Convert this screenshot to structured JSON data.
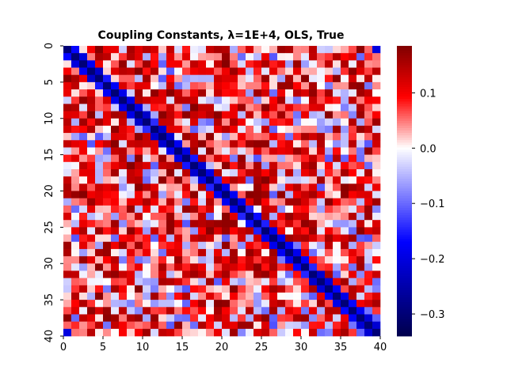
{
  "chart_data": {
    "type": "heatmap",
    "title": "Coupling Constants, λ=1E+4, OLS, True",
    "size": 40,
    "x_ticks": [
      "0",
      "5",
      "10",
      "15",
      "20",
      "25",
      "30",
      "35",
      "40"
    ],
    "y_ticks": [
      "0",
      "5",
      "10",
      "15",
      "20",
      "25",
      "30",
      "35",
      "40"
    ],
    "xlim": [
      0,
      40
    ],
    "ylim": [
      40,
      0
    ],
    "colormap": "seismic",
    "colorbar": {
      "min": -0.34,
      "max": 0.185,
      "ticks": [
        {
          "value": 0.1,
          "label": "0.1"
        },
        {
          "value": 0.0,
          "label": "0.0"
        },
        {
          "value": -0.1,
          "label": "−0.1"
        },
        {
          "value": -0.2,
          "label": "−0.2"
        },
        {
          "value": -0.3,
          "label": "−0.3"
        }
      ]
    },
    "diagonal_value": -0.3,
    "off_diagonal_range": [
      -0.12,
      0.18
    ],
    "colors": {
      "min": "#00004c",
      "blue": "#0000ff",
      "zero": "#ffffff",
      "red": "#ff0000",
      "max": "#800000"
    }
  }
}
